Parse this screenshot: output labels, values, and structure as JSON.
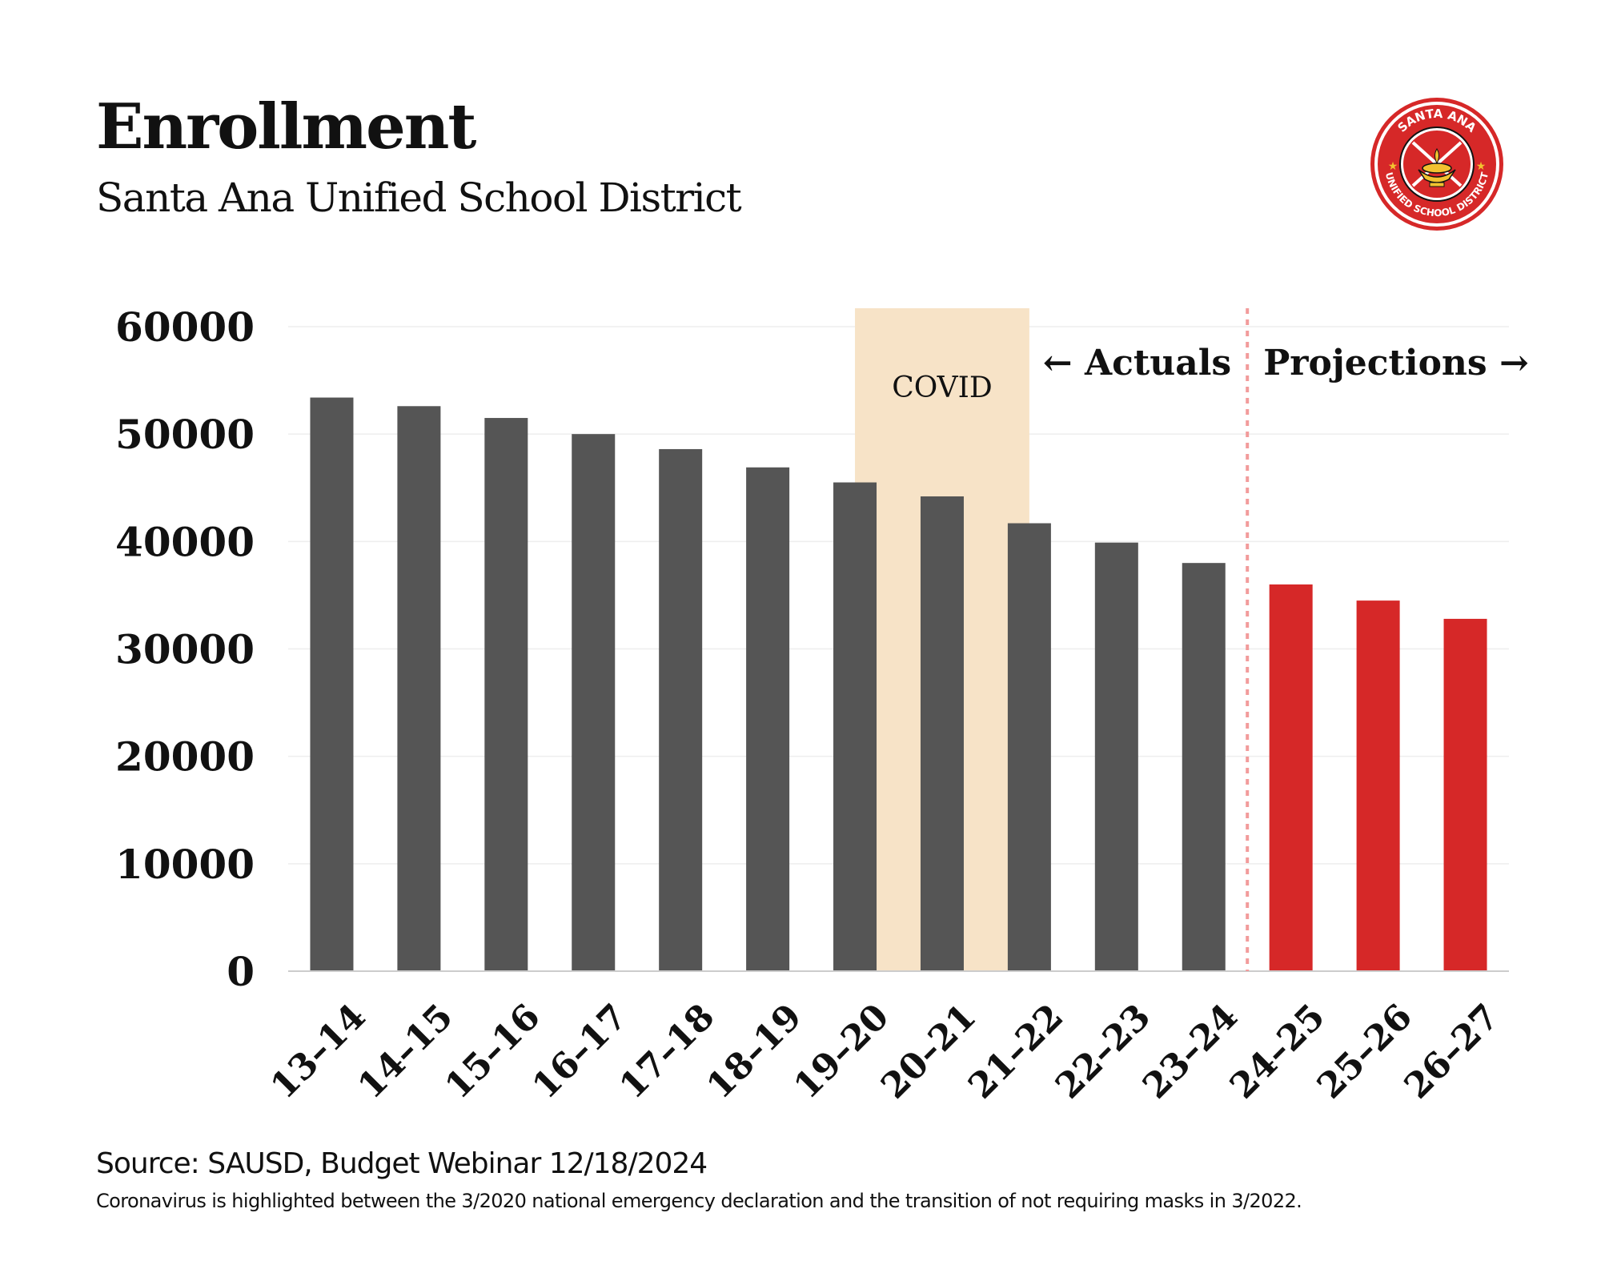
{
  "header": {
    "title": "Enrollment",
    "subtitle": "Santa Ana Unified School District"
  },
  "logo": {
    "icon": "santa-ana-usd-seal-icon",
    "top_text": "SANTA ANA",
    "bottom_text": "UNIFIED SCHOOL DISTRICT"
  },
  "footer": {
    "source": "Source: SAUSD, Budget Webinar 12/18/2024",
    "note": "Coronavirus is highlighted between the 3/2020 national emergency declaration and the transition of not requiring masks in 3/2022."
  },
  "colors": {
    "actual": "#555555",
    "projection": "#d62828",
    "covid": "#f7e3c7",
    "divider": "#f29b9b",
    "grid": "#eeeeee",
    "axis": "#cccccc"
  },
  "chart_data": {
    "type": "bar",
    "title": "Enrollment",
    "subtitle": "Santa Ana Unified School District",
    "xlabel": "",
    "ylabel": "",
    "ylim": [
      0,
      60000
    ],
    "yticks": [
      0,
      10000,
      20000,
      30000,
      40000,
      50000,
      60000
    ],
    "grid": true,
    "categories": [
      "13–14",
      "14–15",
      "15–16",
      "16–17",
      "17–18",
      "18–19",
      "19–20",
      "20–21",
      "21–22",
      "22–23",
      "23–24",
      "24–25",
      "25–26",
      "26–27"
    ],
    "series": [
      {
        "name": "Actuals",
        "color": "#555555",
        "values": [
          53400,
          52600,
          51500,
          50000,
          48600,
          46900,
          45500,
          44200,
          41700,
          39900,
          38000,
          null,
          null,
          null
        ]
      },
      {
        "name": "Projections",
        "color": "#d62828",
        "values": [
          null,
          null,
          null,
          null,
          null,
          null,
          null,
          null,
          null,
          null,
          null,
          36000,
          34500,
          32800
        ]
      }
    ],
    "annotations": {
      "covid_label": "COVID",
      "covid_span": [
        "19–20",
        "21–22"
      ],
      "actuals_label": "← Actuals",
      "projections_label": "Projections →",
      "divider_between": [
        "23–24",
        "24–25"
      ]
    }
  }
}
